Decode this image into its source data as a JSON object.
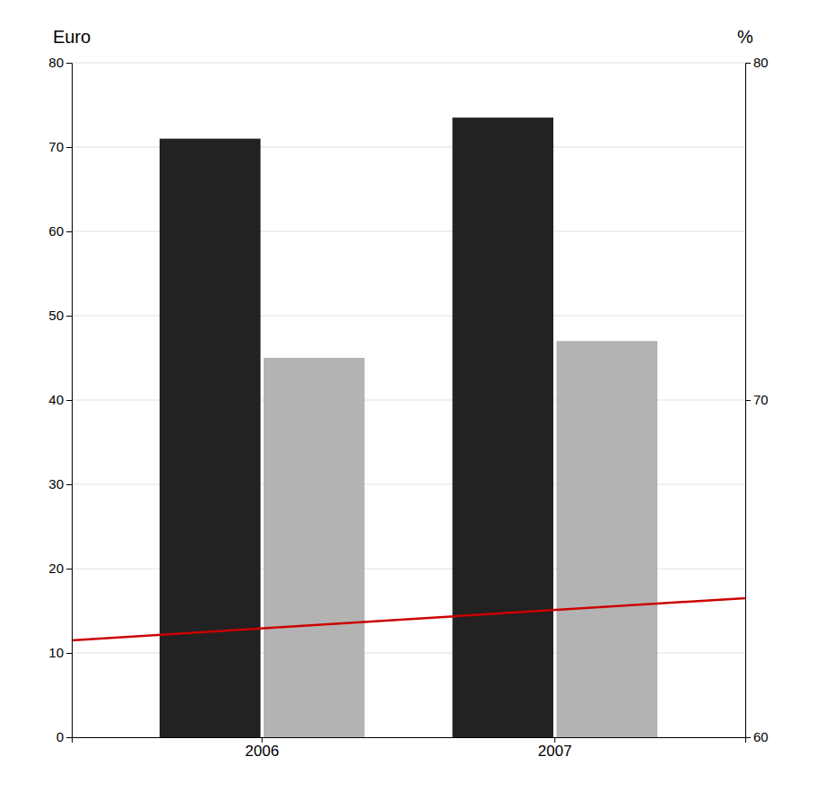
{
  "chart_data": {
    "type": "bar",
    "ylabel": "Euro",
    "y2label": "%",
    "categories": [
      "2006",
      "2007"
    ],
    "series": [
      {
        "color": "#222222",
        "values": [
          71,
          73.5
        ]
      },
      {
        "color": "#b3b3b3",
        "values": [
          45,
          47
        ]
      },
      {
        "type": "line",
        "color": "#cc0000",
        "values": [
          11.5,
          16.5
        ]
      }
    ],
    "ylim": [
      0,
      80
    ],
    "yticks": [
      0,
      10,
      20,
      30,
      40,
      50,
      60,
      70,
      80
    ],
    "y2lim": [
      60,
      80
    ],
    "y2ticks": [
      60,
      70,
      80
    ],
    "grid": true
  }
}
